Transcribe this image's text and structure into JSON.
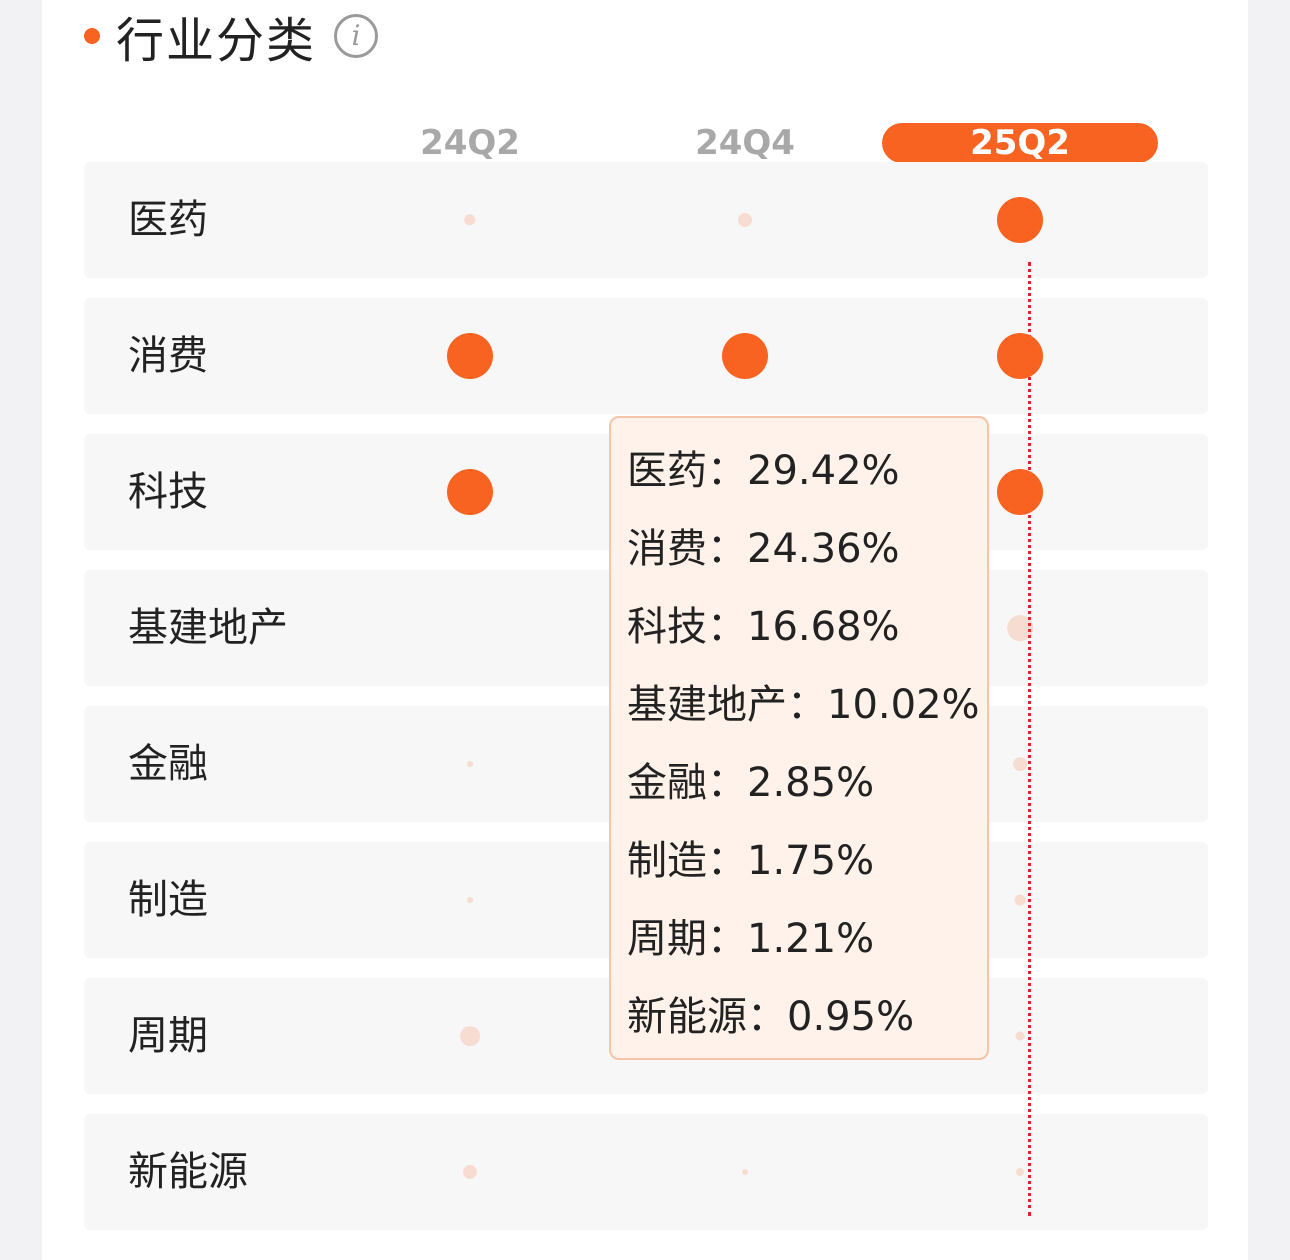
{
  "header": {
    "title": "行业分类",
    "info_icon": "info-icon",
    "accent": "#f96321"
  },
  "columns": [
    {
      "label": "24Q2",
      "active": false
    },
    {
      "label": "24Q4",
      "active": false
    },
    {
      "label": "25Q2",
      "active": true
    }
  ],
  "rows": [
    {
      "label": "医药"
    },
    {
      "label": "消费"
    },
    {
      "label": "科技"
    },
    {
      "label": "基建地产"
    },
    {
      "label": "金融"
    },
    {
      "label": "制造"
    },
    {
      "label": "周期"
    },
    {
      "label": "新能源"
    }
  ],
  "tooltip": {
    "items": [
      {
        "name": "医药",
        "sep": "：",
        "value": "29.42%"
      },
      {
        "name": "消费",
        "sep": "：",
        "value": "24.36%"
      },
      {
        "name": "科技",
        "sep": "：",
        "value": "16.68%"
      },
      {
        "name": "基建地产",
        "sep": "：",
        "value": "10.02%"
      },
      {
        "name": "金融",
        "sep": "：",
        "value": "2.85%"
      },
      {
        "name": "制造",
        "sep": "：",
        "value": "1.75%"
      },
      {
        "name": "周期",
        "sep": "：",
        "value": "1.21%"
      },
      {
        "name": "新能源",
        "sep": "：",
        "value": "0.95%"
      }
    ]
  },
  "chart_data": {
    "type": "scatter",
    "categories": [
      "24Q2",
      "24Q4",
      "25Q2"
    ],
    "rows": [
      "医药",
      "消费",
      "科技",
      "基建地产",
      "金融",
      "制造",
      "周期",
      "新能源"
    ],
    "values": {
      "24Q2": [
        2,
        25,
        20,
        0,
        0.5,
        0.5,
        6,
        3
      ],
      "24Q4": [
        3,
        25,
        0,
        0,
        0,
        0,
        0,
        0.5
      ],
      "25Q2": [
        29.42,
        24.36,
        16.68,
        10.02,
        2.85,
        1.75,
        1.21,
        0.95
      ]
    },
    "colors": {
      "primary": "#f96321"
    }
  }
}
